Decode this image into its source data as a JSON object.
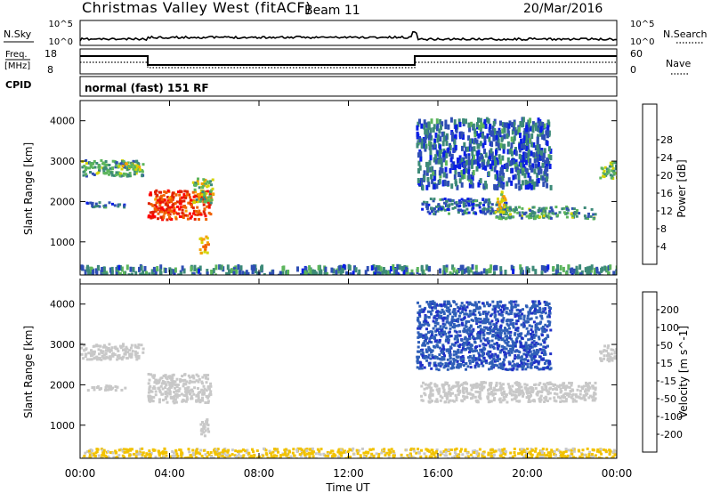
{
  "header": {
    "title": "Christmas Valley West (fitACF)",
    "beam": "Beam 11",
    "date": "20/Mar/2016"
  },
  "nsky_panel": {
    "left_label": "N.Sky",
    "left_ticks": [
      "10^5",
      "10^0"
    ],
    "right_label": "N.Search",
    "right_ticks": [
      "10^5",
      "10^0"
    ]
  },
  "freq_panel": {
    "left_label_line1": "Freq.",
    "left_label_line2": "[MHz]",
    "left_ticks": [
      "18",
      "8"
    ],
    "right_label": "Nave",
    "right_ticks": [
      "60",
      "0"
    ]
  },
  "cpid": {
    "label": "CPID",
    "text": "normal (fast) 151 RF"
  },
  "colors": {
    "power": [
      "#0a1ee6",
      "#2f4fb4",
      "#3d8a78",
      "#5cb55c",
      "#d4d400",
      "#f5a000",
      "#f06000",
      "#e02000",
      "#ff0000"
    ],
    "velocity": [
      "#2030c8",
      "#2f5fb8",
      "#3f8f5f",
      "#55cc3a",
      "#c8c8c8",
      "#f2c200",
      "#f08000",
      "#e84000",
      "#e81010"
    ]
  },
  "chart_data": [
    {
      "type": "heatmap",
      "title": "",
      "xlabel": "Time UT",
      "ylabel": "Slant Range [km]",
      "x_ticks": [
        "00:00",
        "04:00",
        "08:00",
        "12:00",
        "16:00",
        "20:00",
        "00:00"
      ],
      "xlim_hours": [
        0,
        24
      ],
      "y_ticks": [
        1000,
        2000,
        3000,
        4000
      ],
      "ylim": [
        180,
        4500
      ],
      "colorbar_label": "Power [dB]",
      "colorbar_ticks": [
        "4",
        "8",
        "12",
        "16",
        "20",
        "24",
        "28"
      ],
      "colorbar_range": [
        0,
        32
      ],
      "regions": [
        {
          "t0": 0.0,
          "t1": 2.8,
          "r0": 2650,
          "r1": 3050,
          "level": "low-mid",
          "value": 10
        },
        {
          "t0": 1.5,
          "t1": 2.7,
          "r0": 2780,
          "r1": 2980,
          "level": "mid",
          "value": 16
        },
        {
          "t0": 0.2,
          "t1": 2.0,
          "r0": 1890,
          "r1": 2010,
          "level": "low",
          "value": 6
        },
        {
          "t0": 3.0,
          "t1": 5.8,
          "r0": 1580,
          "r1": 2300,
          "level": "high",
          "value": 26
        },
        {
          "t0": 5.0,
          "t1": 5.9,
          "r0": 1950,
          "r1": 2600,
          "level": "mid",
          "value": 14
        },
        {
          "t0": 5.3,
          "t1": 5.7,
          "r0": 750,
          "r1": 1180,
          "level": "mid-high",
          "value": 20
        },
        {
          "t0": 0.0,
          "t1": 24.0,
          "r0": 180,
          "r1": 450,
          "level": "low-mixed",
          "value": 8
        },
        {
          "t0": 15.2,
          "t1": 19.0,
          "r0": 1720,
          "r1": 2100,
          "level": "low",
          "value": 6
        },
        {
          "t0": 18.5,
          "t1": 23.0,
          "r0": 1600,
          "r1": 1900,
          "level": "low-mid",
          "value": 10
        },
        {
          "t0": 18.6,
          "t1": 19.0,
          "r0": 1750,
          "r1": 2300,
          "level": "mid",
          "value": 16
        },
        {
          "t0": 15.0,
          "t1": 21.0,
          "r0": 2400,
          "r1": 4100,
          "level": "sparse-low",
          "value": 6
        },
        {
          "t0": 23.2,
          "t1": 24.0,
          "r0": 2600,
          "r1": 3000,
          "level": "low-mid",
          "value": 12
        }
      ]
    },
    {
      "type": "heatmap",
      "title": "",
      "xlabel": "Time UT",
      "ylabel": "Slant Range [km]",
      "x_ticks": [
        "00:00",
        "04:00",
        "08:00",
        "12:00",
        "16:00",
        "20:00",
        "00:00"
      ],
      "xlim_hours": [
        0,
        24
      ],
      "y_ticks": [
        1000,
        2000,
        3000,
        4000
      ],
      "ylim": [
        180,
        4500
      ],
      "colorbar_label": "Velocity [m s^-1]",
      "colorbar_ticks": [
        "200",
        "100",
        "50",
        "15",
        "-15",
        "-50",
        "-100",
        "-200"
      ],
      "colorbar_range": [
        -250,
        250
      ],
      "regions": [
        {
          "t0": 0.0,
          "t1": 2.8,
          "r0": 2650,
          "r1": 3050,
          "level": "ground",
          "value": 0
        },
        {
          "t0": 0.2,
          "t1": 2.0,
          "r0": 1890,
          "r1": 2010,
          "level": "ground",
          "value": 0
        },
        {
          "t0": 3.0,
          "t1": 5.8,
          "r0": 1580,
          "r1": 2300,
          "level": "ground",
          "value": 0
        },
        {
          "t0": 5.3,
          "t1": 5.7,
          "r0": 750,
          "r1": 1180,
          "level": "ground",
          "value": 0
        },
        {
          "t0": 0.0,
          "t1": 24.0,
          "r0": 180,
          "r1": 450,
          "level": "negative",
          "value": -40
        },
        {
          "t0": 15.2,
          "t1": 23.0,
          "r0": 1600,
          "r1": 2100,
          "level": "ground",
          "value": 0
        },
        {
          "t0": 15.0,
          "t1": 21.0,
          "r0": 2400,
          "r1": 4100,
          "level": "positive",
          "value": 180
        },
        {
          "t0": 23.2,
          "t1": 24.0,
          "r0": 2600,
          "r1": 3000,
          "level": "ground",
          "value": 0
        }
      ]
    }
  ]
}
